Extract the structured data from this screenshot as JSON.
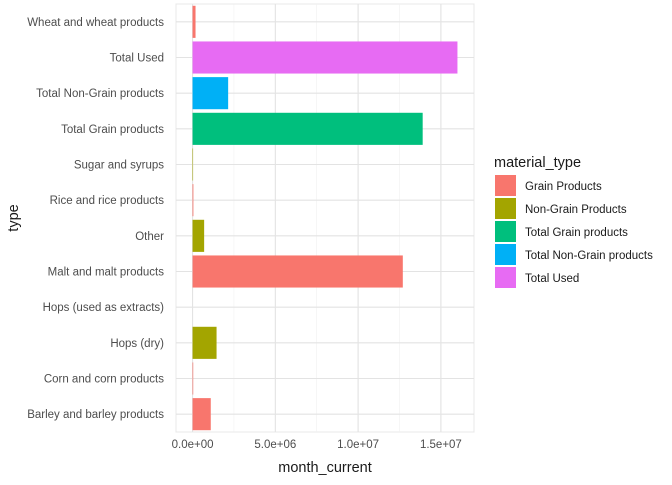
{
  "chart_data": {
    "type": "bar",
    "orientation": "horizontal",
    "xlabel": "month_current",
    "ylabel": "type",
    "xlim": [
      -1000000,
      17000000
    ],
    "x_ticks": [
      0,
      5000000,
      10000000,
      15000000
    ],
    "x_tick_labels": [
      "0.0e+00",
      "5.0e+06",
      "1.0e+07",
      "1.5e+07"
    ],
    "grid": true,
    "legend_position": "right",
    "categories": [
      "Barley and barley products",
      "Corn and corn products",
      "Hops (dry)",
      "Hops (used as extracts)",
      "Malt and malt products",
      "Other",
      "Rice and rice products",
      "Sugar and syrups",
      "Total Grain products",
      "Total Non-Grain products",
      "Total Used",
      "Wheat and wheat products"
    ],
    "values": [
      1100000,
      40000,
      1450000,
      0,
      12700000,
      700000,
      50000,
      30000,
      13900000,
      2150000,
      16000000,
      180000
    ],
    "bar_series": [
      "Grain Products",
      "Grain Products",
      "Non-Grain Products",
      "Non-Grain Products",
      "Grain Products",
      "Non-Grain Products",
      "Grain Products",
      "Non-Grain Products",
      "Total Grain products",
      "Total Non-Grain products",
      "Total Used",
      "Grain Products"
    ],
    "legend": {
      "title": "material_type",
      "entries": [
        {
          "name": "Grain Products",
          "color": "#F8766D"
        },
        {
          "name": "Non-Grain Products",
          "color": "#A3A500"
        },
        {
          "name": "Total Grain products",
          "color": "#00BF7D"
        },
        {
          "name": "Total Non-Grain products",
          "color": "#00B0F6"
        },
        {
          "name": "Total Used",
          "color": "#E76BF3"
        }
      ]
    }
  }
}
